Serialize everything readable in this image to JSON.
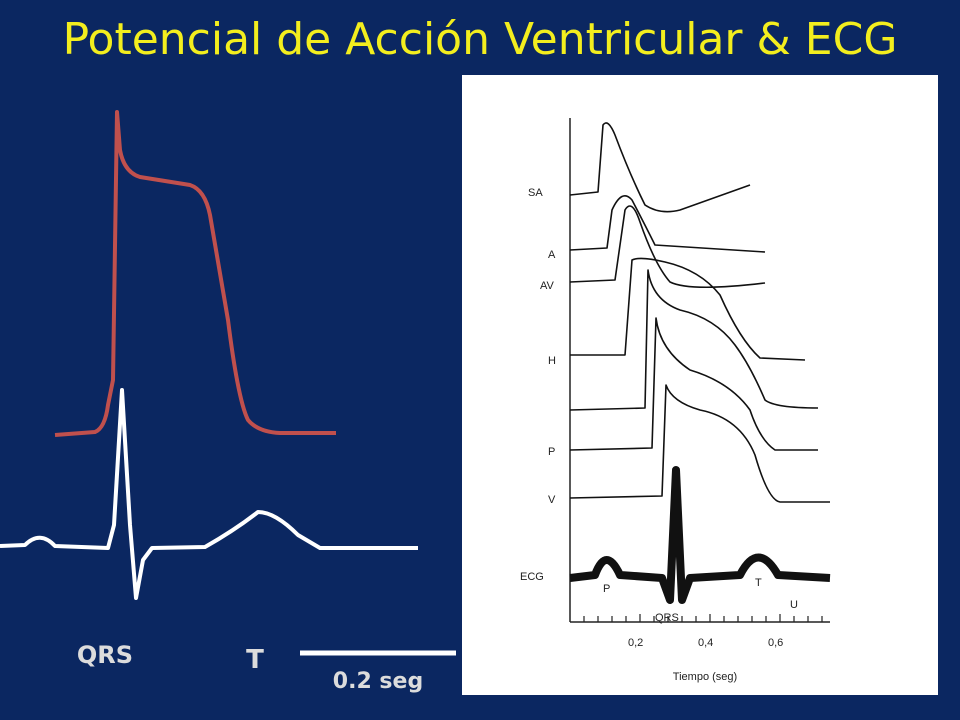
{
  "title": "Potencial de Acción Ventricular & ECG",
  "left_labels": {
    "qrs": "QRS",
    "t": "T",
    "scale": "0.2 seg"
  },
  "figure": {
    "trace_labels": [
      "SA",
      "A",
      "AV",
      "H",
      "P",
      "V",
      "ECG"
    ],
    "wave_labels": [
      "P",
      "T",
      "U",
      "QRS"
    ],
    "axis_ticks": [
      "0,2",
      "0,4",
      "0,6"
    ],
    "axis_title": "Tiempo (seg)"
  }
}
